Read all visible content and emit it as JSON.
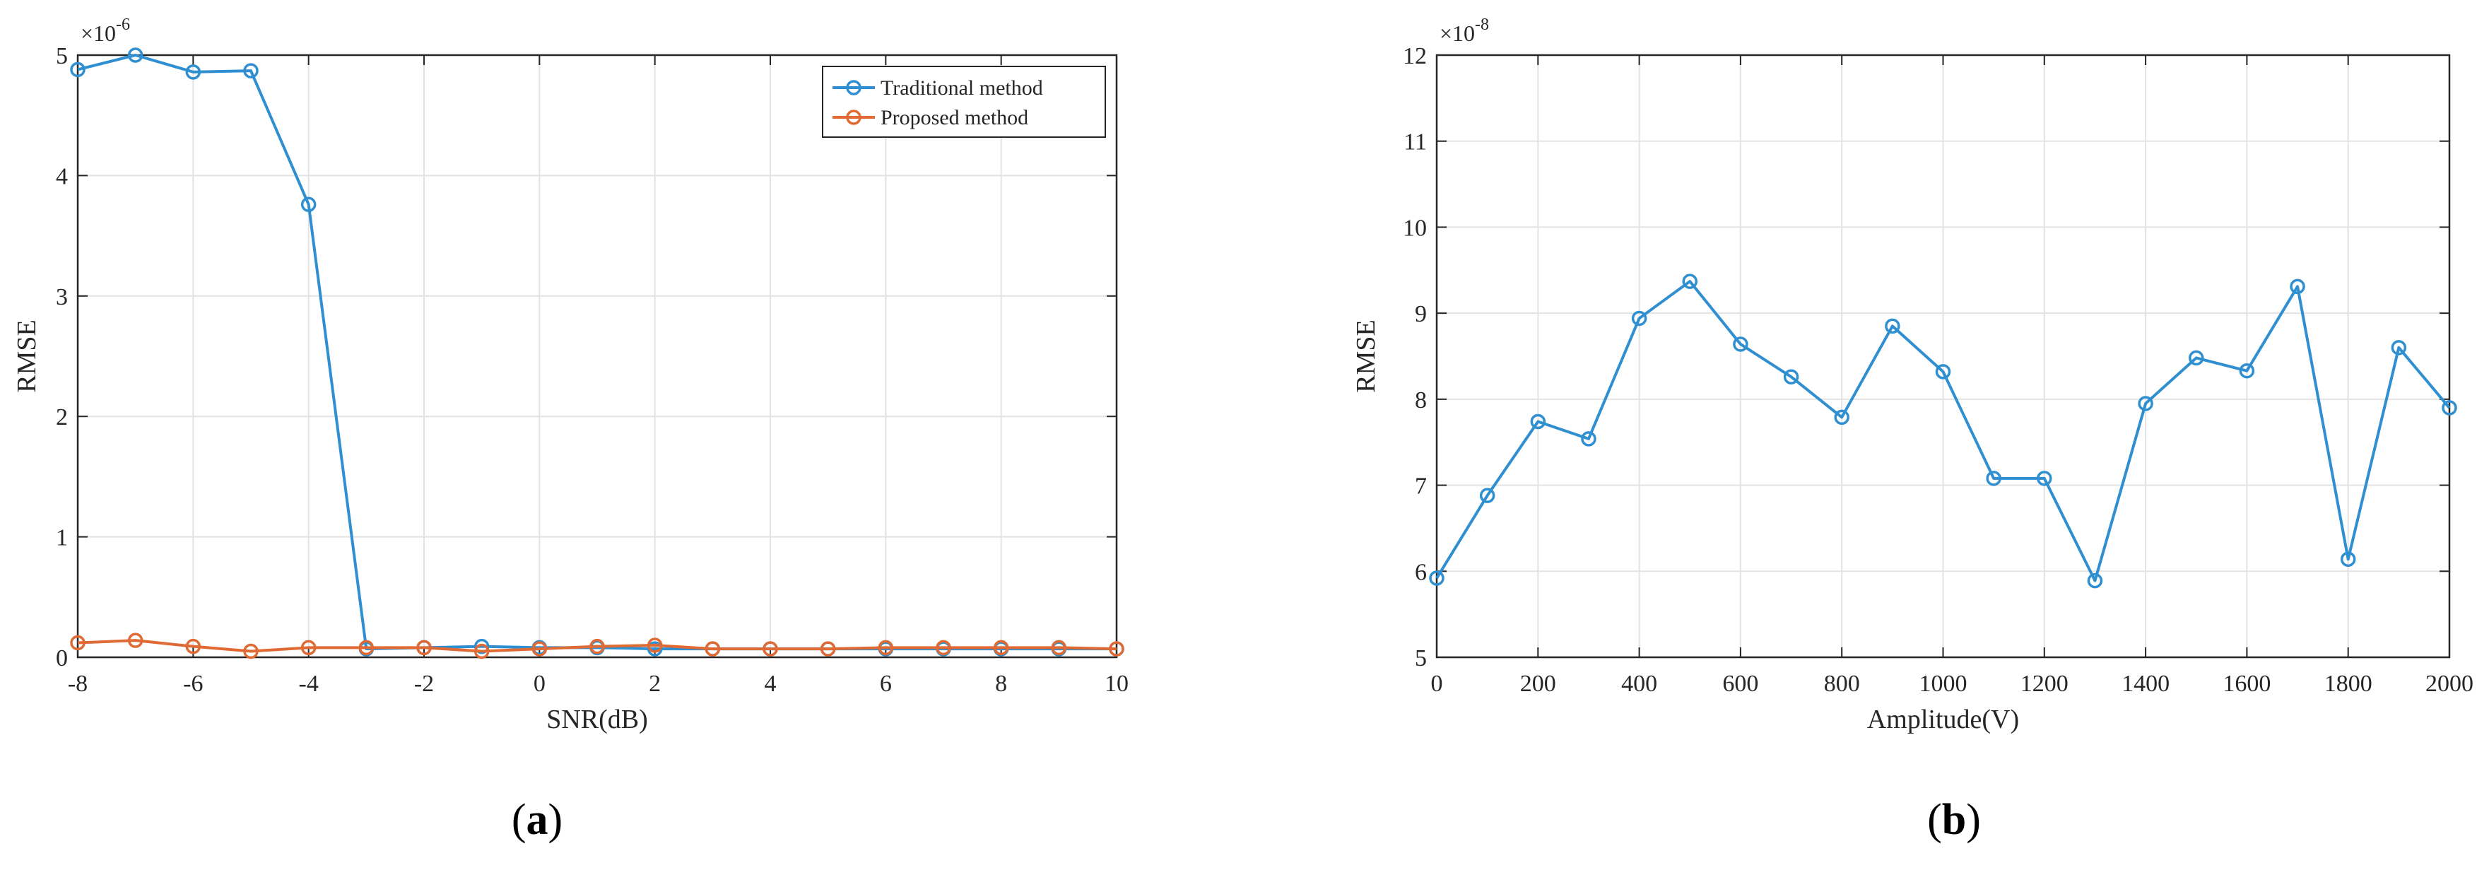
{
  "chart_data": [
    {
      "type": "line",
      "panel_label": "a",
      "xlabel": "SNR(dB)",
      "ylabel": "RMSE",
      "y_multiplier": "×10",
      "y_exponent": "-6",
      "xlim": [
        -8,
        10
      ],
      "ylim": [
        0,
        5
      ],
      "xticks": [
        -8,
        -6,
        -4,
        -2,
        0,
        2,
        4,
        6,
        8,
        10
      ],
      "yticks": [
        0,
        1,
        2,
        3,
        4,
        5
      ],
      "grid": true,
      "legend_position": "top-right",
      "x": [
        -8,
        -7,
        -6,
        -5,
        -4,
        -3,
        -2,
        -1,
        0,
        1,
        2,
        3,
        4,
        5,
        6,
        7,
        8,
        9,
        10
      ],
      "series": [
        {
          "name": "Traditional method",
          "color": "#2f8fd0",
          "values": [
            4.88,
            5.0,
            4.86,
            4.87,
            3.76,
            0.07,
            0.08,
            0.09,
            0.08,
            0.08,
            0.07,
            0.07,
            0.07,
            0.07,
            0.07,
            0.07,
            0.07,
            0.07,
            0.07
          ]
        },
        {
          "name": "Proposed method",
          "color": "#e06a34",
          "values": [
            0.12,
            0.14,
            0.09,
            0.05,
            0.08,
            0.08,
            0.08,
            0.05,
            0.07,
            0.09,
            0.1,
            0.07,
            0.07,
            0.07,
            0.08,
            0.08,
            0.08,
            0.08,
            0.07
          ]
        }
      ]
    },
    {
      "type": "line",
      "panel_label": "b",
      "xlabel": "Amplitude(V)",
      "ylabel": "RMSE",
      "y_multiplier": "×10",
      "y_exponent": "-8",
      "xlim": [
        0,
        2000
      ],
      "ylim": [
        5,
        12
      ],
      "xticks": [
        0,
        200,
        400,
        600,
        800,
        1000,
        1200,
        1400,
        1600,
        1800,
        2000
      ],
      "yticks": [
        5,
        6,
        7,
        8,
        9,
        10,
        11,
        12
      ],
      "grid": true,
      "x": [
        0,
        100,
        200,
        300,
        400,
        500,
        600,
        700,
        800,
        900,
        1000,
        1100,
        1200,
        1300,
        1400,
        1500,
        1600,
        1700,
        1800,
        1900,
        2000
      ],
      "series": [
        {
          "color": "#2f8fd0",
          "values": [
            5.92,
            6.88,
            7.74,
            7.54,
            8.94,
            9.37,
            8.64,
            8.26,
            7.79,
            8.85,
            8.32,
            7.08,
            7.08,
            5.89,
            7.95,
            8.48,
            8.33,
            9.31,
            6.14,
            8.6,
            7.9
          ]
        }
      ]
    }
  ]
}
